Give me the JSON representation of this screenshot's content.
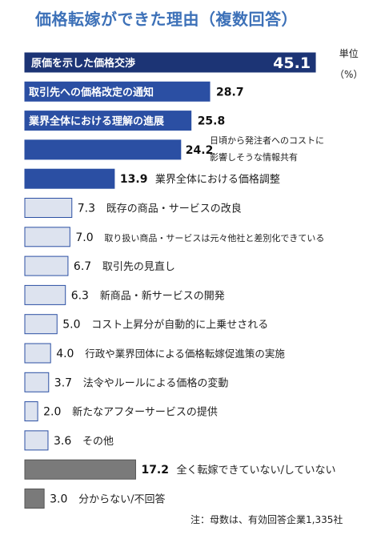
{
  "chart_data": {
    "type": "bar",
    "orientation": "horizontal",
    "title": "価格転嫁ができた理由（複数回答）",
    "unit_label": "単位",
    "unit": "（%）",
    "note": "注：母数は、有効回答企業1,335社",
    "categories": [
      "原価を示した価格交渉",
      "取引先への価格改定の通知",
      "業界全体における理解の進展",
      "日頃から発注者へのコストに影響しそうな情報共有",
      "業界全体における価格調整",
      "既存の商品・サービスの改良",
      "取り扱い商品・サービスは元々他社と差別化できている",
      "取引先の見直し",
      "新商品・新サービスの開発",
      "コスト上昇分が自動的に上乗せされる",
      "行政や業界団体による価格転嫁促進策の実施",
      "法令やルールによる価格の変動",
      "新たなアフターサービスの提供",
      "その他",
      "全く転嫁できていない/していない",
      "分からない/不回答"
    ],
    "values": [
      45.1,
      28.7,
      25.8,
      24.2,
      13.9,
      7.3,
      7.0,
      6.7,
      6.3,
      5.0,
      4.0,
      3.7,
      2.0,
      3.6,
      17.2,
      3.0
    ],
    "value_labels": [
      "45.1",
      "28.7",
      "25.8",
      "24.2",
      "13.9",
      "7.3",
      "7.0",
      "6.7",
      "6.3",
      "5.0",
      "4.0",
      "3.7",
      "2.0",
      "3.6",
      "17.2",
      "3.0"
    ],
    "colors": {
      "dark_navy": "#1c3475",
      "blue": "#2b4fa3",
      "light": "#dde3ef",
      "light_border": "#2b4fa3",
      "gray": "#7a7a7a"
    }
  }
}
